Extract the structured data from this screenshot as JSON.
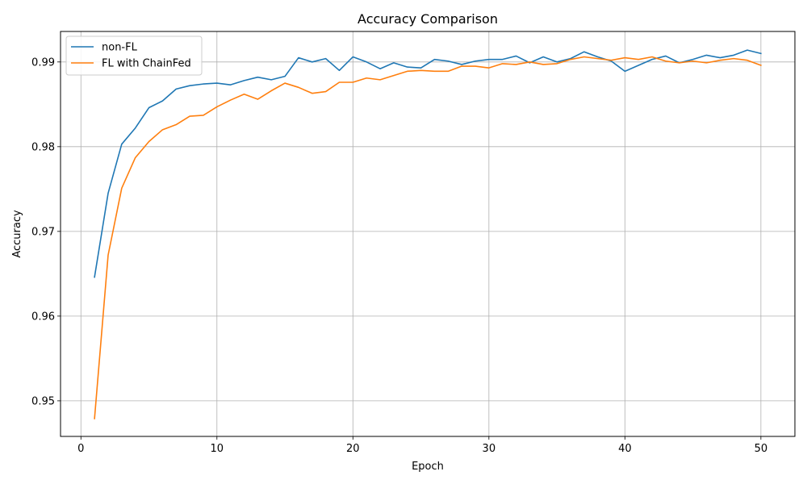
{
  "chart_data": {
    "type": "line",
    "title": "Accuracy Comparison",
    "xlabel": "Epoch",
    "ylabel": "Accuracy",
    "xlim": [
      -1.5,
      52.5
    ],
    "ylim": [
      0.9458,
      0.9936
    ],
    "xticks": [
      0,
      10,
      20,
      30,
      40,
      50
    ],
    "xtick_labels": [
      "0",
      "10",
      "20",
      "30",
      "40",
      "50"
    ],
    "yticks": [
      0.95,
      0.96,
      0.97,
      0.98,
      0.99
    ],
    "ytick_labels": [
      "0.95",
      "0.96",
      "0.97",
      "0.98",
      "0.99"
    ],
    "grid": true,
    "legend_position": "top-left",
    "x": [
      1,
      2,
      3,
      4,
      5,
      6,
      7,
      8,
      9,
      10,
      11,
      12,
      13,
      14,
      15,
      16,
      17,
      18,
      19,
      20,
      21,
      22,
      23,
      24,
      25,
      26,
      27,
      28,
      29,
      30,
      31,
      32,
      33,
      34,
      35,
      36,
      37,
      38,
      39,
      40,
      41,
      42,
      43,
      44,
      45,
      46,
      47,
      48,
      49,
      50
    ],
    "series": [
      {
        "name": "non-FL",
        "color": "#1f77b4",
        "values": [
          0.9646,
          0.9745,
          0.9803,
          0.9822,
          0.9846,
          0.9854,
          0.9868,
          0.9872,
          0.9874,
          0.9875,
          0.9873,
          0.9878,
          0.9882,
          0.9879,
          0.9883,
          0.9905,
          0.99,
          0.9904,
          0.989,
          0.9906,
          0.99,
          0.9892,
          0.9899,
          0.9894,
          0.9893,
          0.9903,
          0.9901,
          0.9897,
          0.9901,
          0.9903,
          0.9903,
          0.9907,
          0.9899,
          0.9906,
          0.99,
          0.9904,
          0.9912,
          0.9906,
          0.9901,
          0.9889,
          0.9896,
          0.9903,
          0.9907,
          0.9899,
          0.9903,
          0.9908,
          0.9905,
          0.9908,
          0.9914,
          0.991
        ]
      },
      {
        "name": "FL with ChainFed",
        "color": "#ff7f0e",
        "values": [
          0.9479,
          0.9672,
          0.9751,
          0.9787,
          0.9806,
          0.982,
          0.9826,
          0.9836,
          0.9837,
          0.9847,
          0.9855,
          0.9862,
          0.9856,
          0.9866,
          0.9875,
          0.987,
          0.9863,
          0.9865,
          0.9876,
          0.9876,
          0.9881,
          0.9879,
          0.9884,
          0.9889,
          0.989,
          0.9889,
          0.9889,
          0.9895,
          0.9895,
          0.9893,
          0.9898,
          0.9897,
          0.99,
          0.9897,
          0.9898,
          0.9903,
          0.9906,
          0.9904,
          0.9902,
          0.9905,
          0.9903,
          0.9906,
          0.9901,
          0.9899,
          0.9901,
          0.9899,
          0.9902,
          0.9904,
          0.9902,
          0.9896
        ]
      }
    ]
  }
}
